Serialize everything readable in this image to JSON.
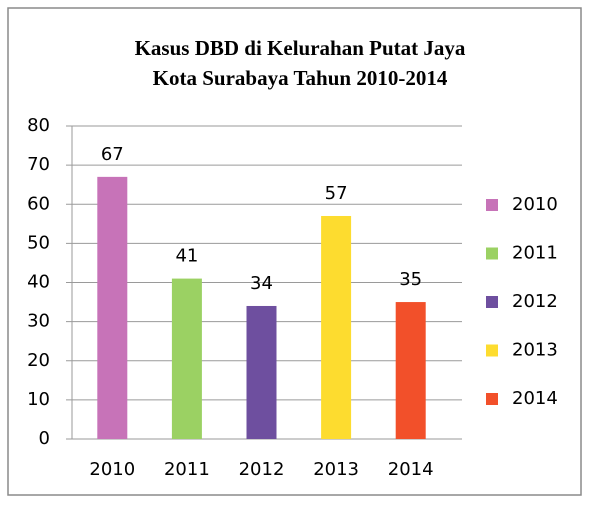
{
  "chart_data": {
    "type": "bar",
    "title": [
      "Kasus DBD di Kelurahan Putat Jaya",
      "Kota Surabaya Tahun 2010-2014"
    ],
    "categories": [
      "2010",
      "2011",
      "2012",
      "2013",
      "2014"
    ],
    "values": [
      67,
      41,
      34,
      57,
      35
    ],
    "colors": [
      "#c773b8",
      "#9bd163",
      "#6e4f9f",
      "#fddc2f",
      "#f2502a"
    ],
    "ylim": [
      0,
      80
    ],
    "yticks": [
      0,
      10,
      20,
      30,
      40,
      50,
      60,
      70,
      80
    ],
    "grid": true,
    "legend": "right"
  }
}
